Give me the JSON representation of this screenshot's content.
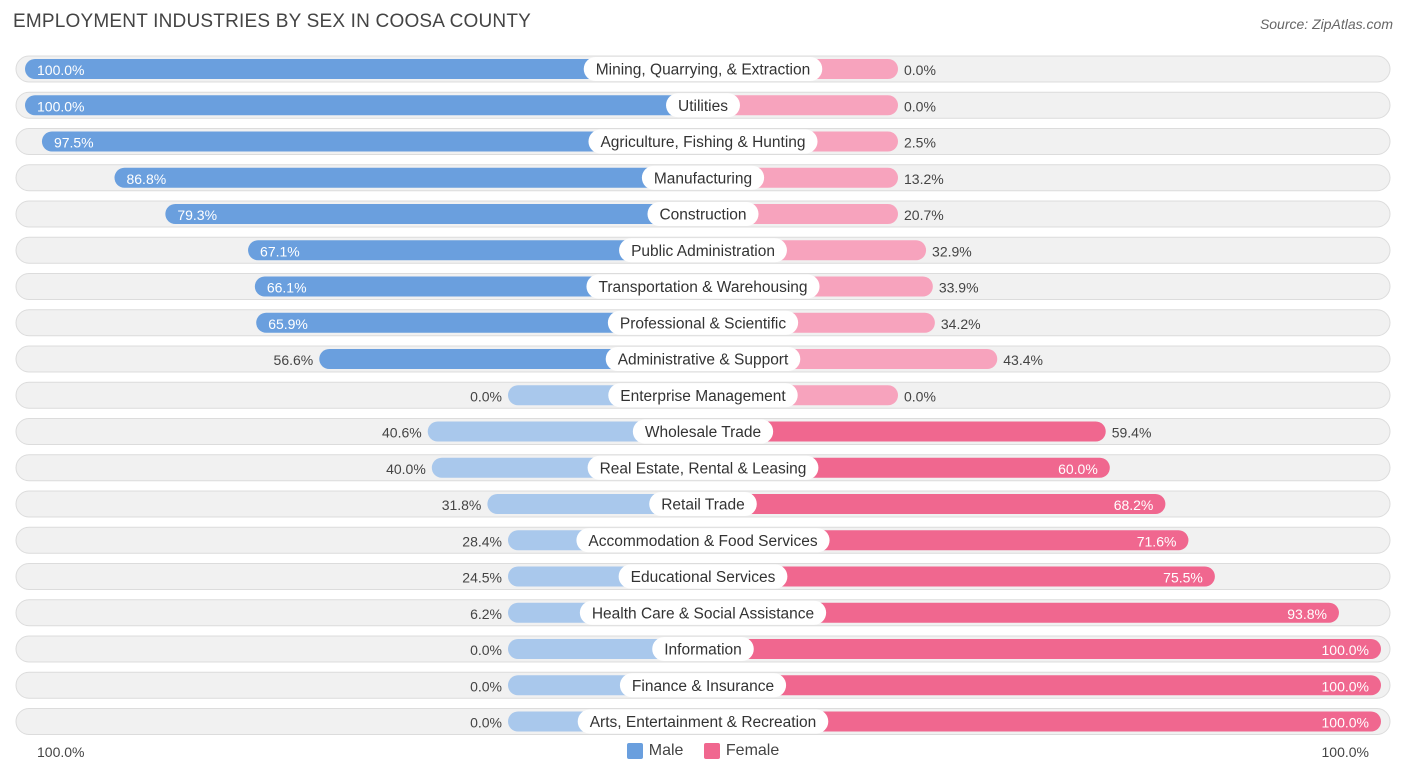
{
  "header": {
    "title": "EMPLOYMENT INDUSTRIES BY SEX IN COOSA COUNTY",
    "source": "Source: ZipAtlas.com"
  },
  "axis": {
    "left_label": "100.0%",
    "right_label": "100.0%"
  },
  "legend": {
    "male_label": "Male",
    "female_label": "Female"
  },
  "colors": {
    "male_strong": "#6a9fde",
    "male_light": "#a9c8ec",
    "female_strong": "#f0678f",
    "female_light": "#f7a3bd",
    "row_bg": "#f1f1f1",
    "row_border": "#dcdcdc"
  },
  "chart_data": {
    "type": "bar",
    "title": "EMPLOYMENT INDUSTRIES BY SEX IN COOSA COUNTY",
    "orientation": "horizontal-diverging",
    "xlim": [
      0,
      100
    ],
    "categories": [
      "Mining, Quarrying, & Extraction",
      "Utilities",
      "Agriculture, Fishing & Hunting",
      "Manufacturing",
      "Construction",
      "Public Administration",
      "Transportation & Warehousing",
      "Professional & Scientific",
      "Administrative & Support",
      "Enterprise Management",
      "Wholesale Trade",
      "Real Estate, Rental & Leasing",
      "Retail Trade",
      "Accommodation & Food Services",
      "Educational Services",
      "Health Care & Social Assistance",
      "Information",
      "Finance & Insurance",
      "Arts, Entertainment & Recreation"
    ],
    "series": [
      {
        "name": "Male",
        "values": [
          100.0,
          100.0,
          97.5,
          86.8,
          79.3,
          67.1,
          66.1,
          65.9,
          56.6,
          0.0,
          40.6,
          40.0,
          31.8,
          28.4,
          24.5,
          6.2,
          0.0,
          0.0,
          0.0
        ],
        "labels": [
          "100.0%",
          "100.0%",
          "97.5%",
          "86.8%",
          "79.3%",
          "67.1%",
          "66.1%",
          "65.9%",
          "56.6%",
          "0.0%",
          "40.6%",
          "40.0%",
          "31.8%",
          "28.4%",
          "24.5%",
          "6.2%",
          "0.0%",
          "0.0%",
          "0.0%"
        ]
      },
      {
        "name": "Female",
        "values": [
          0.0,
          0.0,
          2.5,
          13.2,
          20.7,
          32.9,
          33.9,
          34.2,
          43.4,
          0.0,
          59.4,
          60.0,
          68.2,
          71.6,
          75.5,
          93.8,
          100.0,
          100.0,
          100.0
        ],
        "labels": [
          "0.0%",
          "0.0%",
          "2.5%",
          "13.2%",
          "20.7%",
          "32.9%",
          "33.9%",
          "34.2%",
          "43.4%",
          "0.0%",
          "59.4%",
          "60.0%",
          "68.2%",
          "71.6%",
          "75.5%",
          "93.8%",
          "100.0%",
          "100.0%",
          "100.0%"
        ]
      }
    ]
  }
}
